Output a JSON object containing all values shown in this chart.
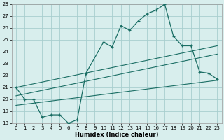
{
  "xlabel": "Humidex (Indice chaleur)",
  "bg_color": "#d8eeed",
  "grid_color": "#a8cece",
  "line_color": "#1a6e64",
  "xlim": [
    -0.5,
    23.5
  ],
  "ylim": [
    18,
    28
  ],
  "xticks": [
    0,
    1,
    2,
    3,
    4,
    5,
    6,
    7,
    8,
    9,
    10,
    11,
    12,
    13,
    14,
    15,
    16,
    17,
    18,
    19,
    20,
    21,
    22,
    23
  ],
  "yticks": [
    18,
    19,
    20,
    21,
    22,
    23,
    24,
    25,
    26,
    27,
    28
  ],
  "main_line_x": [
    0,
    1,
    2,
    3,
    4,
    5,
    6,
    7,
    8,
    10,
    11,
    12,
    13,
    14,
    15,
    16,
    17,
    18,
    19,
    20,
    21,
    22,
    23
  ],
  "main_line_y": [
    21.0,
    20.0,
    20.0,
    18.5,
    18.7,
    18.7,
    18.0,
    18.3,
    22.2,
    24.8,
    24.4,
    26.2,
    25.8,
    26.6,
    27.2,
    27.5,
    28.0,
    25.3,
    24.5,
    24.5,
    22.3,
    22.2,
    21.7
  ],
  "line1_x": [
    0,
    23
  ],
  "line1_y": [
    21.0,
    24.5
  ],
  "line2_x": [
    0,
    23
  ],
  "line2_y": [
    20.3,
    23.8
  ],
  "line3_x": [
    0,
    23
  ],
  "line3_y": [
    19.5,
    21.6
  ]
}
